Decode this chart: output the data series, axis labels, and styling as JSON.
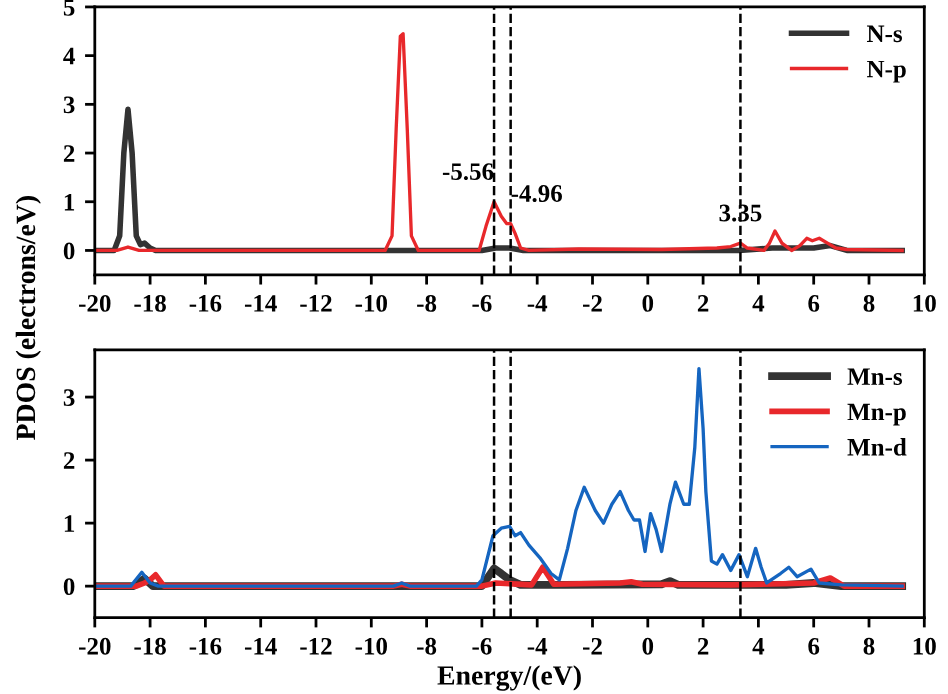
{
  "chart_data": [
    {
      "type": "line",
      "xlim": [
        -20,
        10
      ],
      "xticks": [
        -20,
        -18,
        -16,
        -14,
        -12,
        -10,
        -8,
        -6,
        -4,
        -2,
        0,
        2,
        4,
        6,
        8,
        10
      ],
      "ylim": [
        -0.5,
        5
      ],
      "yticks": [
        0,
        1,
        2,
        3,
        4,
        5
      ],
      "legend": "top right",
      "grid": false,
      "series": [
        {
          "name": "N-s",
          "color": "#333333",
          "x": [
            -20,
            -19.3,
            -19.1,
            -18.95,
            -18.8,
            -18.65,
            -18.5,
            -18.35,
            -18.2,
            -18.0,
            -17.8,
            -6,
            -5.5,
            -5,
            -4.5,
            3.3,
            4.5,
            6.0,
            6.6,
            7.2,
            9.2
          ],
          "values": [
            0,
            0,
            0.3,
            2.0,
            2.9,
            2.0,
            0.3,
            0.12,
            0.15,
            0.05,
            0,
            0,
            0.05,
            0.05,
            0,
            0,
            0.05,
            0.05,
            0.1,
            0,
            0
          ]
        },
        {
          "name": "N-p",
          "color": "#e8282b",
          "x": [
            -20,
            -19.2,
            -18.8,
            -18.4,
            -9.5,
            -9.25,
            -9.1,
            -8.95,
            -8.85,
            -8.7,
            -8.55,
            -8.3,
            -6.1,
            -5.85,
            -5.56,
            -5.3,
            -5.1,
            -4.96,
            -4.8,
            -4.6,
            -4.3,
            -2.5,
            0.5,
            2.5,
            3.0,
            3.35,
            3.6,
            4.2,
            4.4,
            4.6,
            4.85,
            5.2,
            5.5,
            5.75,
            5.95,
            6.2,
            6.5,
            6.8,
            7.2,
            9.2
          ],
          "values": [
            0,
            0,
            0.07,
            0,
            0,
            0.3,
            2.5,
            4.4,
            4.45,
            2.5,
            0.3,
            0,
            0,
            0.5,
            1.0,
            0.7,
            0.55,
            0.55,
            0.35,
            0.05,
            0,
            0.03,
            0.02,
            0.05,
            0.08,
            0.15,
            0.05,
            0,
            0.15,
            0.4,
            0.15,
            0,
            0.1,
            0.25,
            0.2,
            0.25,
            0.15,
            0.05,
            0.02,
            0
          ]
        }
      ],
      "ref_lines": [
        {
          "axis": "x",
          "value": -5.56,
          "line_style": "dashed",
          "color": "#000000"
        },
        {
          "axis": "x",
          "value": -4.96,
          "line_style": "dashed",
          "color": "#000000"
        },
        {
          "axis": "x",
          "value": 3.35,
          "line_style": "dashed",
          "color": "#000000"
        }
      ],
      "annotations": [
        {
          "text": "-5.56",
          "x": -5.56,
          "y": 1.0
        },
        {
          "text": "-4.96",
          "x": -4.96,
          "y": 0.55
        },
        {
          "text": "3.35",
          "x": 3.35,
          "y": 0.15
        }
      ]
    },
    {
      "type": "line",
      "xlim": [
        -20,
        10
      ],
      "xticks": [
        -20,
        -18,
        -16,
        -14,
        -12,
        -10,
        -8,
        -6,
        -4,
        -2,
        0,
        2,
        4,
        6,
        8,
        10
      ],
      "ylim": [
        -0.5,
        3.75
      ],
      "yticks": [
        0,
        1,
        2,
        3
      ],
      "legend": "top right",
      "grid": false,
      "xlabel": "Energy/(eV)",
      "ylabel": "PDOS (electrons/eV)",
      "series": [
        {
          "name": "Mn-s",
          "color": "#333333",
          "x": [
            -20,
            -18.6,
            -18.2,
            -17.9,
            -6.0,
            -5.56,
            -5.3,
            -5.0,
            -4.6,
            -3,
            0.5,
            0.8,
            1.1,
            5,
            6,
            7,
            9.2
          ],
          "values": [
            0,
            0,
            0.12,
            0,
            0,
            0.28,
            0.2,
            0.1,
            0.02,
            0.02,
            0.03,
            0.08,
            0.02,
            0.02,
            0.05,
            0,
            0
          ]
        },
        {
          "name": "Mn-p",
          "color": "#e8282b",
          "x": [
            -20,
            -18.5,
            -18.2,
            -18.0,
            -17.8,
            -17.5,
            -9.2,
            -8.9,
            -8.6,
            -6,
            -5.5,
            -4.2,
            -3.8,
            -3.4,
            -1,
            -0.6,
            -0.2,
            3,
            6,
            6.6,
            7.1,
            9.2
          ],
          "values": [
            0,
            0,
            0.05,
            0.1,
            0.18,
            0,
            0,
            0.03,
            0,
            0,
            0.05,
            0.02,
            0.3,
            0.03,
            0.05,
            0.07,
            0.03,
            0.02,
            0.05,
            0.13,
            0,
            0
          ]
        },
        {
          "name": "Mn-d",
          "color": "#1565c0",
          "x": [
            -20,
            -18.7,
            -18.3,
            -18.0,
            -17.7,
            -9.2,
            -8.9,
            -8.6,
            -6.2,
            -6.0,
            -5.6,
            -5.3,
            -5.0,
            -4.8,
            -4.6,
            -4.3,
            -3.9,
            -3.5,
            -3.2,
            -2.9,
            -2.6,
            -2.3,
            -1.9,
            -1.6,
            -1.3,
            -1.0,
            -0.7,
            -0.5,
            -0.3,
            -0.1,
            0.1,
            0.3,
            0.5,
            0.8,
            1.0,
            1.3,
            1.5,
            1.7,
            1.85,
            2.0,
            2.1,
            2.3,
            2.5,
            2.7,
            3.0,
            3.3,
            3.6,
            3.9,
            4.1,
            4.3,
            4.8,
            5.1,
            5.4,
            5.9,
            6.2,
            7.0,
            9.2
          ],
          "values": [
            0,
            0,
            0.22,
            0.05,
            0,
            0,
            0.05,
            0,
            0,
            0.1,
            0.8,
            0.92,
            0.95,
            0.8,
            0.85,
            0.65,
            0.45,
            0.2,
            0.1,
            0.6,
            1.2,
            1.57,
            1.2,
            1.0,
            1.3,
            1.5,
            1.2,
            1.05,
            1.05,
            0.55,
            1.15,
            0.9,
            0.55,
            1.3,
            1.65,
            1.3,
            1.3,
            2.2,
            3.45,
            2.5,
            1.5,
            0.4,
            0.35,
            0.5,
            0.25,
            0.5,
            0.15,
            0.6,
            0.3,
            0.05,
            0.2,
            0.3,
            0.15,
            0.27,
            0.05,
            0.02,
            0
          ]
        }
      ],
      "ref_lines": [
        {
          "axis": "x",
          "value": -5.56,
          "line_style": "dashed",
          "color": "#000000"
        },
        {
          "axis": "x",
          "value": -4.96,
          "line_style": "dashed",
          "color": "#000000"
        },
        {
          "axis": "x",
          "value": 3.35,
          "line_style": "dashed",
          "color": "#000000"
        }
      ]
    }
  ]
}
